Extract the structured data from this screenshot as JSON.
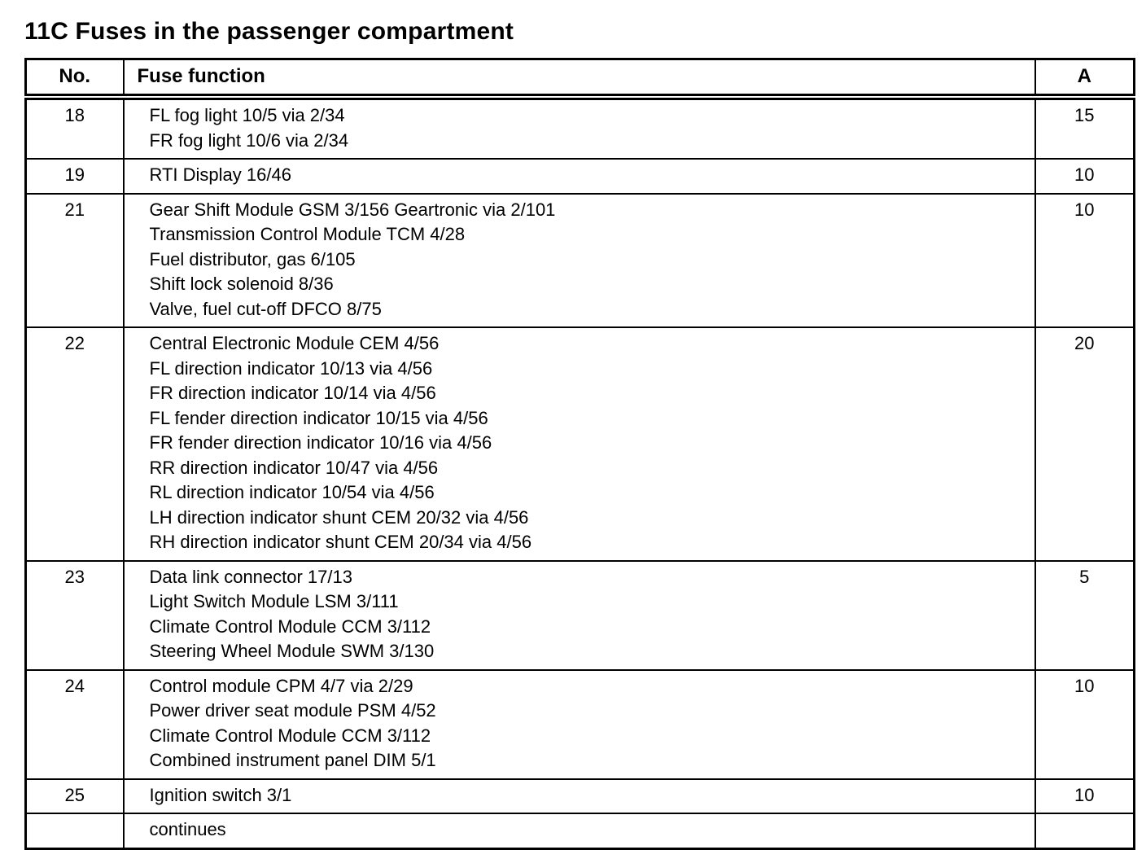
{
  "page_title": "11C Fuses in the passenger compartment",
  "table": {
    "headers": {
      "no": "No.",
      "function": "Fuse function",
      "amp": "A"
    },
    "rows": [
      {
        "no": "18",
        "functions": [
          "FL fog light 10/5 via 2/34",
          "FR fog light 10/6 via 2/34"
        ],
        "amp": "15"
      },
      {
        "no": "19",
        "functions": [
          "RTI Display 16/46"
        ],
        "amp": "10"
      },
      {
        "no": "21",
        "functions": [
          "Gear Shift Module GSM 3/156 Geartronic via 2/101",
          "Transmission Control Module TCM 4/28",
          "Fuel distributor, gas 6/105",
          "Shift lock solenoid 8/36",
          "Valve, fuel cut-off DFCO 8/75"
        ],
        "amp": "10"
      },
      {
        "no": "22",
        "functions": [
          "Central Electronic Module CEM 4/56",
          "FL direction indicator 10/13 via 4/56",
          "FR direction indicator 10/14 via 4/56",
          "FL fender direction indicator 10/15 via 4/56",
          "FR fender direction indicator 10/16 via 4/56",
          "RR direction indicator 10/47 via 4/56",
          "RL direction indicator 10/54 via 4/56",
          "LH direction indicator shunt CEM 20/32 via 4/56",
          "RH direction indicator shunt CEM 20/34 via 4/56"
        ],
        "amp": "20"
      },
      {
        "no": "23",
        "functions": [
          "Data link connector 17/13",
          "Light Switch Module LSM 3/111",
          "Climate Control Module CCM 3/112",
          "Steering Wheel Module SWM 3/130"
        ],
        "amp": "5"
      },
      {
        "no": "24",
        "functions": [
          "Control module CPM 4/7 via 2/29",
          "Power driver seat module PSM 4/52",
          "Climate Control Module CCM 3/112",
          "Combined instrument panel DIM 5/1"
        ],
        "amp": "10"
      },
      {
        "no": "25",
        "functions": [
          "Ignition switch 3/1"
        ],
        "amp": "10"
      },
      {
        "no": "",
        "functions": [
          "continues"
        ],
        "amp": ""
      }
    ]
  }
}
